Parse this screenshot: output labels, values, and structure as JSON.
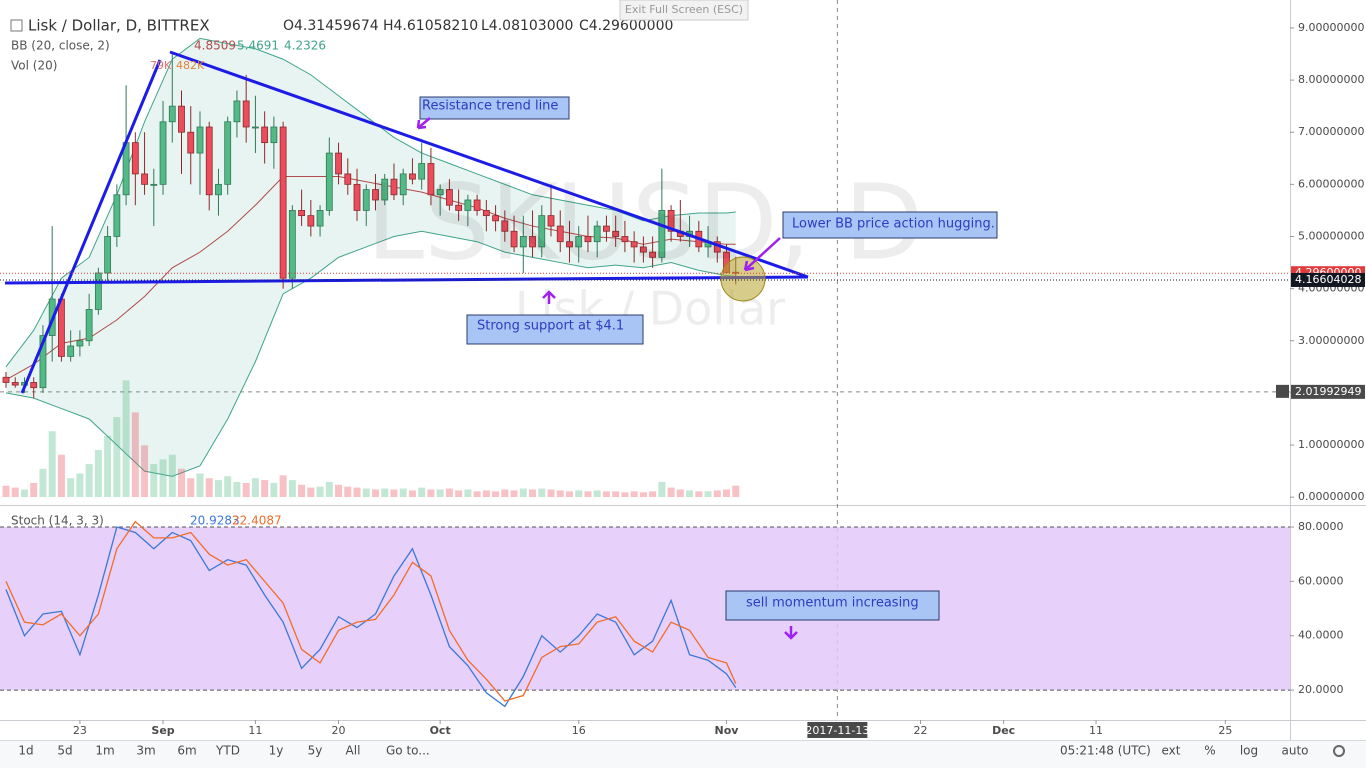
{
  "top_bar": {
    "exit": "Exit Full Screen (ESC)"
  },
  "toolbar": {
    "ranges": [
      "1d",
      "5d",
      "1m",
      "3m",
      "6m",
      "YTD",
      "1y",
      "5y",
      "All"
    ],
    "goto": "Go to...",
    "clock": "05:21:48 (UTC)",
    "options": [
      "ext",
      "%",
      "log",
      "auto"
    ]
  },
  "chart_data": [
    {
      "type": "candlestick",
      "title": "Lisk / Dollar, D, BITTREX",
      "legend_ohlc": [
        "O4.31459674",
        "H4.61058210",
        "L4.08103000",
        "C4.29600000"
      ],
      "up_color": "#53b987",
      "down_color": "#eb4d5c",
      "x": [
        "2017-08-15",
        "2017-08-16",
        "2017-08-17",
        "2017-08-18",
        "2017-08-19",
        "2017-08-20",
        "2017-08-21",
        "2017-08-22",
        "2017-08-23",
        "2017-08-24",
        "2017-08-25",
        "2017-08-26",
        "2017-08-27",
        "2017-08-28",
        "2017-08-29",
        "2017-08-30",
        "2017-08-31",
        "2017-09-01",
        "2017-09-02",
        "2017-09-03",
        "2017-09-04",
        "2017-09-05",
        "2017-09-06",
        "2017-09-07",
        "2017-09-08",
        "2017-09-09",
        "2017-09-10",
        "2017-09-11",
        "2017-09-12",
        "2017-09-13",
        "2017-09-14",
        "2017-09-15",
        "2017-09-16",
        "2017-09-17",
        "2017-09-18",
        "2017-09-19",
        "2017-09-20",
        "2017-09-21",
        "2017-09-22",
        "2017-09-23",
        "2017-09-24",
        "2017-09-25",
        "2017-09-26",
        "2017-09-27",
        "2017-09-28",
        "2017-09-29",
        "2017-09-30",
        "2017-10-01",
        "2017-10-02",
        "2017-10-03",
        "2017-10-04",
        "2017-10-05",
        "2017-10-06",
        "2017-10-07",
        "2017-10-08",
        "2017-10-09",
        "2017-10-10",
        "2017-10-11",
        "2017-10-12",
        "2017-10-13",
        "2017-10-14",
        "2017-10-15",
        "2017-10-16",
        "2017-10-17",
        "2017-10-18",
        "2017-10-19",
        "2017-10-20",
        "2017-10-21",
        "2017-10-22",
        "2017-10-23",
        "2017-10-24",
        "2017-10-25",
        "2017-10-26",
        "2017-10-27",
        "2017-10-28",
        "2017-10-29",
        "2017-10-30",
        "2017-10-31",
        "2017-11-01",
        "2017-11-02"
      ],
      "ohlc": [
        [
          2.3,
          2.4,
          2.1,
          2.2
        ],
        [
          2.2,
          2.3,
          2.1,
          2.15
        ],
        [
          2.15,
          2.3,
          2.0,
          2.2
        ],
        [
          2.2,
          2.3,
          1.9,
          2.1
        ],
        [
          2.1,
          3.3,
          2.0,
          3.1
        ],
        [
          3.1,
          5.2,
          2.6,
          3.8
        ],
        [
          3.8,
          3.9,
          2.6,
          2.7
        ],
        [
          2.7,
          3.2,
          2.6,
          2.9
        ],
        [
          2.9,
          3.2,
          2.7,
          3.0
        ],
        [
          3.0,
          3.9,
          2.9,
          3.6
        ],
        [
          3.6,
          4.4,
          3.5,
          4.3
        ],
        [
          4.3,
          5.2,
          4.1,
          5.0
        ],
        [
          5.0,
          6.0,
          4.8,
          5.8
        ],
        [
          5.8,
          7.9,
          5.6,
          6.8
        ],
        [
          6.8,
          7.0,
          5.6,
          6.2
        ],
        [
          6.2,
          7.0,
          5.8,
          6.0
        ],
        [
          6.0,
          6.3,
          5.2,
          6.0
        ],
        [
          6.0,
          7.6,
          5.8,
          7.2
        ],
        [
          7.2,
          8.5,
          6.8,
          7.5
        ],
        [
          7.5,
          7.8,
          6.2,
          7.0
        ],
        [
          7.0,
          7.5,
          6.0,
          6.6
        ],
        [
          6.6,
          7.4,
          5.8,
          7.1
        ],
        [
          7.1,
          7.2,
          5.5,
          5.8
        ],
        [
          5.8,
          6.3,
          5.4,
          6.0
        ],
        [
          6.0,
          7.3,
          5.8,
          7.2
        ],
        [
          7.2,
          7.8,
          6.9,
          7.6
        ],
        [
          7.6,
          8.1,
          6.8,
          7.1
        ],
        [
          7.1,
          7.7,
          6.6,
          7.1
        ],
        [
          7.1,
          7.4,
          6.4,
          6.8
        ],
        [
          6.8,
          7.3,
          6.3,
          7.1
        ],
        [
          7.1,
          7.2,
          4.0,
          4.2
        ],
        [
          4.2,
          5.6,
          4.0,
          5.5
        ],
        [
          5.5,
          5.9,
          5.2,
          5.4
        ],
        [
          5.4,
          5.7,
          5.0,
          5.2
        ],
        [
          5.2,
          5.6,
          5.0,
          5.5
        ],
        [
          5.5,
          6.9,
          5.4,
          6.6
        ],
        [
          6.6,
          6.8,
          6.0,
          6.2
        ],
        [
          6.2,
          6.5,
          5.8,
          6.0
        ],
        [
          6.0,
          6.3,
          5.3,
          5.5
        ],
        [
          5.5,
          6.0,
          5.2,
          5.9
        ],
        [
          5.9,
          6.2,
          5.5,
          5.7
        ],
        [
          5.7,
          6.2,
          5.6,
          6.1
        ],
        [
          6.1,
          6.4,
          5.7,
          5.8
        ],
        [
          5.8,
          6.3,
          5.6,
          6.2
        ],
        [
          6.2,
          6.5,
          6.0,
          6.1
        ],
        [
          6.1,
          6.8,
          5.9,
          6.4
        ],
        [
          6.4,
          6.7,
          5.6,
          5.8
        ],
        [
          5.8,
          6.0,
          5.4,
          5.9
        ],
        [
          5.9,
          6.1,
          5.5,
          5.6
        ],
        [
          5.6,
          5.9,
          5.3,
          5.5
        ],
        [
          5.5,
          5.8,
          5.2,
          5.7
        ],
        [
          5.7,
          5.8,
          5.4,
          5.5
        ],
        [
          5.5,
          5.7,
          5.1,
          5.4
        ],
        [
          5.4,
          5.6,
          5.1,
          5.3
        ],
        [
          5.3,
          5.5,
          4.9,
          5.1
        ],
        [
          5.1,
          5.4,
          4.7,
          4.8
        ],
        [
          4.8,
          5.4,
          4.3,
          5.0
        ],
        [
          5.0,
          5.5,
          4.6,
          4.8
        ],
        [
          4.8,
          5.6,
          4.6,
          5.4
        ],
        [
          5.4,
          6.0,
          5.0,
          5.2
        ],
        [
          5.2,
          5.5,
          4.7,
          4.9
        ],
        [
          4.9,
          5.3,
          4.5,
          4.8
        ],
        [
          4.8,
          5.2,
          4.5,
          5.0
        ],
        [
          5.0,
          5.4,
          4.7,
          4.9
        ],
        [
          4.9,
          5.3,
          4.6,
          5.2
        ],
        [
          5.2,
          5.4,
          4.9,
          5.1
        ],
        [
          5.1,
          5.4,
          4.8,
          5.0
        ],
        [
          5.0,
          5.3,
          4.7,
          4.9
        ],
        [
          4.9,
          5.1,
          4.5,
          4.8
        ],
        [
          4.8,
          5.0,
          4.5,
          4.7
        ],
        [
          4.7,
          5.0,
          4.4,
          4.6
        ],
        [
          4.6,
          6.3,
          4.5,
          5.5
        ],
        [
          5.5,
          5.6,
          4.9,
          5.1
        ],
        [
          5.1,
          5.7,
          4.9,
          5.0
        ],
        [
          5.0,
          5.4,
          4.8,
          5.1
        ],
        [
          5.1,
          5.3,
          4.7,
          4.8
        ],
        [
          4.8,
          5.2,
          4.6,
          4.9
        ],
        [
          4.9,
          5.0,
          4.5,
          4.7
        ],
        [
          4.7,
          4.85,
          4.3,
          4.31
        ],
        [
          4.31459674,
          4.6105821,
          4.08103,
          4.296
        ]
      ],
      "xlim": [
        "2017-08-15",
        "2018-01-01"
      ],
      "xticks": [
        {
          "value": "2017-08-23",
          "label": "23"
        },
        {
          "value": "2017-09-01",
          "label": "Sep"
        },
        {
          "value": "2017-09-11",
          "label": "11"
        },
        {
          "value": "2017-09-20",
          "label": "20"
        },
        {
          "value": "2017-10-01",
          "label": "Oct"
        },
        {
          "value": "2017-10-16",
          "label": "16"
        },
        {
          "value": "2017-11-01",
          "label": "Nov"
        },
        {
          "value": "2017-11-22",
          "label": "22"
        },
        {
          "value": "2017-12-01",
          "label": "Dec"
        },
        {
          "value": "2017-12-11",
          "label": "11"
        },
        {
          "value": "2017-12-25",
          "label": "25"
        }
      ],
      "ylim": [
        -0.15,
        9.44
      ],
      "yticks": [
        {
          "value": 0,
          "label": "0.00000000"
        },
        {
          "value": 1,
          "label": "1.00000000"
        },
        {
          "value": 2,
          "label": "2.00000000"
        },
        {
          "value": 3,
          "label": "3.00000000"
        },
        {
          "value": 4,
          "label": "4.00000000"
        },
        {
          "value": 5,
          "label": "5.00000000"
        },
        {
          "value": 6,
          "label": "6.00000000"
        },
        {
          "value": 7,
          "label": "7.00000000"
        },
        {
          "value": 8,
          "label": "8.00000000"
        },
        {
          "value": 9,
          "label": "9.00000000"
        }
      ],
      "price_lines": [
        {
          "value": 4.296,
          "label": "4.29600000",
          "color": "#e03c3c"
        },
        {
          "value": 4.16604028,
          "label": "4.16604028",
          "color": "#131722"
        }
      ],
      "crosshair": {
        "x": "2017-11-13",
        "y": {
          "value": 2.01992949,
          "label": "2.01992949"
        }
      },
      "bb": {
        "label": "BB (20, close, 2)",
        "x": [
          "2017-08-15",
          "2017-08-18",
          "2017-08-21",
          "2017-08-24",
          "2017-08-27",
          "2017-08-30",
          "2017-09-02",
          "2017-09-05",
          "2017-09-08",
          "2017-09-11",
          "2017-09-14",
          "2017-09-17",
          "2017-09-20",
          "2017-09-23",
          "2017-09-26",
          "2017-09-29",
          "2017-10-02",
          "2017-10-05",
          "2017-10-08",
          "2017-10-11",
          "2017-10-14",
          "2017-10-17",
          "2017-10-20",
          "2017-10-23",
          "2017-10-26",
          "2017-10-29",
          "2017-11-01",
          "2017-11-02"
        ],
        "basis": [
          2.25,
          2.55,
          2.95,
          3.05,
          3.4,
          3.85,
          4.4,
          4.7,
          5.1,
          5.6,
          6.15,
          6.15,
          6.15,
          6.05,
          5.95,
          5.85,
          5.7,
          5.55,
          5.35,
          5.2,
          5.1,
          5.0,
          4.97,
          4.85,
          4.95,
          4.9,
          4.85,
          4.8509
        ],
        "upper": [
          2.5,
          3.2,
          4.2,
          4.6,
          5.8,
          7.2,
          8.4,
          8.8,
          8.7,
          8.6,
          8.4,
          8.1,
          7.7,
          7.3,
          6.9,
          6.6,
          6.4,
          6.2,
          6.0,
          5.8,
          5.7,
          5.6,
          5.5,
          5.3,
          5.4,
          5.45,
          5.45,
          5.4691
        ],
        "lower": [
          2.0,
          1.9,
          1.7,
          1.5,
          1.0,
          0.5,
          0.4,
          0.6,
          1.5,
          2.6,
          3.9,
          4.2,
          4.6,
          4.8,
          5.0,
          5.1,
          5.0,
          4.9,
          4.7,
          4.6,
          4.5,
          4.4,
          4.45,
          4.4,
          4.5,
          4.35,
          4.25,
          4.2326
        ],
        "basis_color": "#b24a4a",
        "band_color": "#3fa58a"
      },
      "volume": {
        "label": "Vol (20)",
        "legend": [
          "79K",
          "482K"
        ],
        "ylim": [
          0,
          25
        ],
        "values": [
          1.2,
          1.0,
          0.8,
          1.5,
          3.0,
          7.0,
          4.5,
          2.0,
          2.5,
          3.5,
          5.0,
          6.5,
          8.5,
          12.4,
          9.0,
          5.5,
          3.5,
          4.0,
          4.5,
          3.0,
          2.0,
          2.5,
          2.0,
          1.8,
          2.2,
          1.6,
          1.5,
          2.0,
          1.8,
          1.5,
          2.3,
          1.8,
          1.3,
          1.0,
          1.1,
          1.6,
          1.3,
          1.1,
          1.0,
          0.9,
          0.8,
          0.9,
          0.8,
          0.9,
          0.7,
          1.0,
          0.8,
          0.8,
          0.9,
          0.7,
          0.8,
          0.6,
          0.7,
          0.6,
          0.8,
          0.7,
          0.9,
          0.8,
          0.9,
          0.8,
          0.7,
          0.6,
          0.7,
          0.6,
          0.7,
          0.6,
          0.6,
          0.5,
          0.6,
          0.5,
          0.6,
          1.6,
          1.0,
          0.8,
          0.7,
          0.6,
          0.6,
          0.7,
          0.8,
          1.2
        ]
      },
      "watermark": [
        "LSKUSD, D",
        "Lisk / Dollar"
      ],
      "annotations": [
        "Resistance trend line",
        "Lower BB price action hugging.",
        "Strong support at $4.1"
      ]
    },
    {
      "type": "line",
      "title": "Stoch (14, 3, 3)",
      "x": [
        "2017-08-15",
        "2017-08-17",
        "2017-08-19",
        "2017-08-21",
        "2017-08-23",
        "2017-08-25",
        "2017-08-27",
        "2017-08-29",
        "2017-08-31",
        "2017-09-02",
        "2017-09-04",
        "2017-09-06",
        "2017-09-08",
        "2017-09-10",
        "2017-09-12",
        "2017-09-14",
        "2017-09-16",
        "2017-09-18",
        "2017-09-20",
        "2017-09-22",
        "2017-09-24",
        "2017-09-26",
        "2017-09-28",
        "2017-09-30",
        "2017-10-02",
        "2017-10-04",
        "2017-10-06",
        "2017-10-08",
        "2017-10-10",
        "2017-10-12",
        "2017-10-14",
        "2017-10-16",
        "2017-10-18",
        "2017-10-20",
        "2017-10-22",
        "2017-10-24",
        "2017-10-26",
        "2017-10-28",
        "2017-10-30",
        "2017-11-01",
        "2017-11-02"
      ],
      "series": [
        {
          "color": "#3c78d8",
          "values": [
            57,
            40,
            48,
            49,
            33,
            55,
            80,
            78,
            72,
            78,
            75,
            64,
            68,
            66,
            55,
            45,
            28,
            35,
            47,
            43,
            48,
            62,
            72,
            55,
            36,
            29,
            19,
            14,
            25,
            40,
            34,
            40,
            48,
            45,
            33,
            38,
            53,
            33,
            31,
            26,
            20.9283
          ]
        },
        {
          "color": "#f06d2c",
          "values": [
            60,
            45,
            44,
            48,
            40,
            48,
            72,
            82,
            76,
            76,
            78,
            70,
            66,
            68,
            60,
            52,
            35,
            30,
            42,
            45,
            46,
            55,
            67,
            62,
            42,
            31,
            24,
            16,
            18,
            32,
            36,
            37,
            45,
            47,
            38,
            34,
            45,
            42,
            32,
            30,
            22.4087
          ]
        }
      ],
      "ylim": [
        9,
        87
      ],
      "yticks": [
        {
          "value": 20,
          "label": "20.0000"
        },
        {
          "value": 40,
          "label": "40.0000"
        },
        {
          "value": 60,
          "label": "60.0000"
        },
        {
          "value": 80,
          "label": "80.0000"
        }
      ],
      "band": [
        20,
        80
      ],
      "band_color": "#e3c8f8",
      "annotations": [
        "sell momentum increasing"
      ]
    }
  ]
}
